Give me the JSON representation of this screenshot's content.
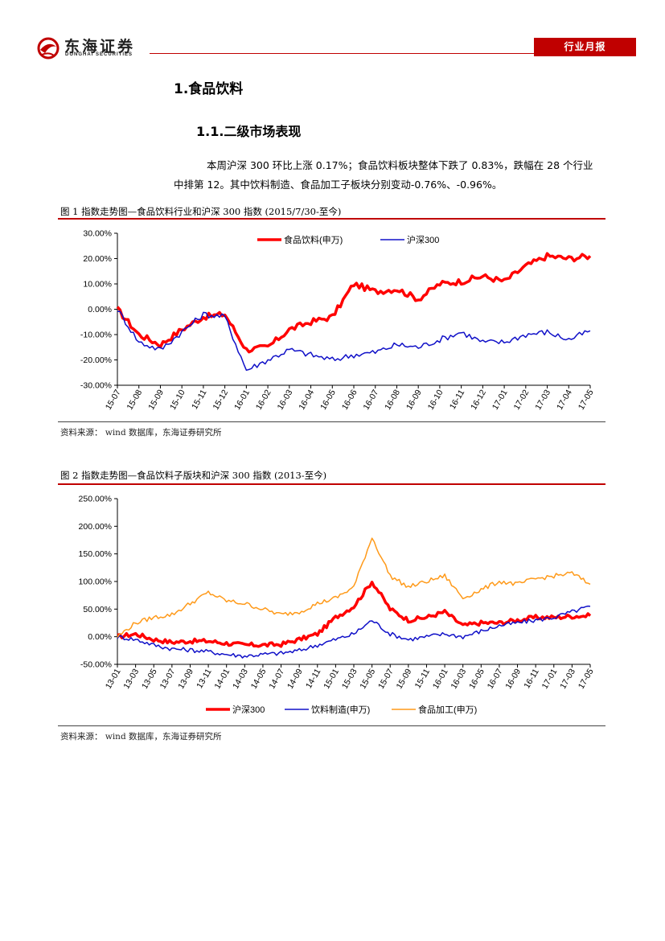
{
  "header": {
    "logo_cn": "东海证券",
    "logo_en": "DONGHAI SECURITIES",
    "tag": "行业月报"
  },
  "heading1": "1.食品饮料",
  "heading2": "1.1.二级市场表现",
  "paragraph": {
    "line1": "本周沪深 300 环比上涨 0.17%；食品饮料板块整体下跌了 0.83%，跌幅在 28 个行业",
    "line2": "中排第 12。其中饮料制造、食品加工子板块分别变动-0.76%、-0.96%。"
  },
  "figure1": {
    "title": "图 1    指数走势图—食品饮料行业和沪深 300 指数 (2015/7/30-至今)",
    "source": "资料来源：   wind 数据库，东海证券研究所"
  },
  "figure2": {
    "title": "图 2    指数走势图—食品饮料子版块和沪深 300 指数 (2013-至今)",
    "source": "资料来源：   wind 数据库，东海证券研究所"
  },
  "colors": {
    "brand_red": "#c00000",
    "series_red": "#ff0000",
    "series_blue": "#1010c8",
    "series_orange": "#ff9a1a"
  },
  "chart_data": [
    {
      "type": "line",
      "title": "",
      "xlabel": "",
      "ylabel": "",
      "ylim": [
        -30,
        30
      ],
      "y_ticks": [
        "-30.00%",
        "-20.00%",
        "-10.00%",
        "0.00%",
        "10.00%",
        "20.00%",
        "30.00%"
      ],
      "categories": [
        "15-07",
        "15-08",
        "15-09",
        "15-10",
        "15-11",
        "15-12",
        "16-01",
        "16-02",
        "16-03",
        "16-04",
        "16-05",
        "16-06",
        "16-07",
        "16-08",
        "16-09",
        "16-10",
        "16-11",
        "16-12",
        "17-01",
        "17-02",
        "17-03",
        "17-04",
        "17-05"
      ],
      "legend_position": "top",
      "series": [
        {
          "name": "食品饮料(申万)",
          "color": "#ff0000",
          "width": 3.5,
          "values": [
            0,
            -10,
            -14,
            -8,
            -3,
            -2,
            -16,
            -15,
            -8,
            -5,
            -3,
            10,
            7,
            8,
            4,
            10,
            11,
            13,
            11,
            17,
            21,
            20,
            21
          ]
        },
        {
          "name": "沪深300",
          "color": "#1010c8",
          "width": 1.5,
          "values": [
            0,
            -13,
            -16,
            -9,
            -2,
            -3,
            -24,
            -20,
            -16,
            -18,
            -20,
            -18,
            -17,
            -14,
            -15,
            -12,
            -9,
            -13,
            -13,
            -10,
            -9,
            -12,
            -8.5
          ]
        }
      ]
    },
    {
      "type": "line",
      "title": "",
      "xlabel": "",
      "ylabel": "",
      "ylim": [
        -50,
        250
      ],
      "y_ticks": [
        "-50.00%",
        "0.00%",
        "50.00%",
        "100.00%",
        "150.00%",
        "200.00%",
        "250.00%"
      ],
      "categories": [
        "13-01",
        "13-03",
        "13-05",
        "13-07",
        "13-09",
        "13-11",
        "14-01",
        "14-03",
        "14-05",
        "14-07",
        "14-09",
        "14-11",
        "15-01",
        "15-03",
        "15-05",
        "15-07",
        "15-09",
        "15-11",
        "16-01",
        "16-03",
        "16-05",
        "16-07",
        "16-09",
        "16-11",
        "17-01",
        "17-03",
        "17-05"
      ],
      "legend_position": "bottom",
      "series": [
        {
          "name": "沪深300",
          "color": "#ff0000",
          "width": 3.5,
          "values": [
            0,
            5,
            -5,
            -10,
            -8,
            -8,
            -12,
            -15,
            -15,
            -14,
            -5,
            5,
            35,
            55,
            100,
            50,
            30,
            35,
            45,
            20,
            25,
            25,
            30,
            35,
            35,
            37,
            38
          ]
        },
        {
          "name": "饮料制造(申万)",
          "color": "#1010c8",
          "width": 1.5,
          "values": [
            0,
            -5,
            -15,
            -22,
            -24,
            -27,
            -32,
            -35,
            -32,
            -30,
            -25,
            -15,
            -5,
            5,
            30,
            5,
            -5,
            0,
            5,
            0,
            10,
            20,
            25,
            30,
            35,
            45,
            55
          ]
        },
        {
          "name": "食品加工(申万)",
          "color": "#ff9a1a",
          "width": 1.5,
          "values": [
            0,
            25,
            35,
            40,
            60,
            80,
            65,
            60,
            50,
            40,
            45,
            60,
            70,
            90,
            180,
            110,
            90,
            100,
            110,
            70,
            85,
            100,
            95,
            105,
            110,
            115,
            95
          ]
        }
      ]
    }
  ]
}
